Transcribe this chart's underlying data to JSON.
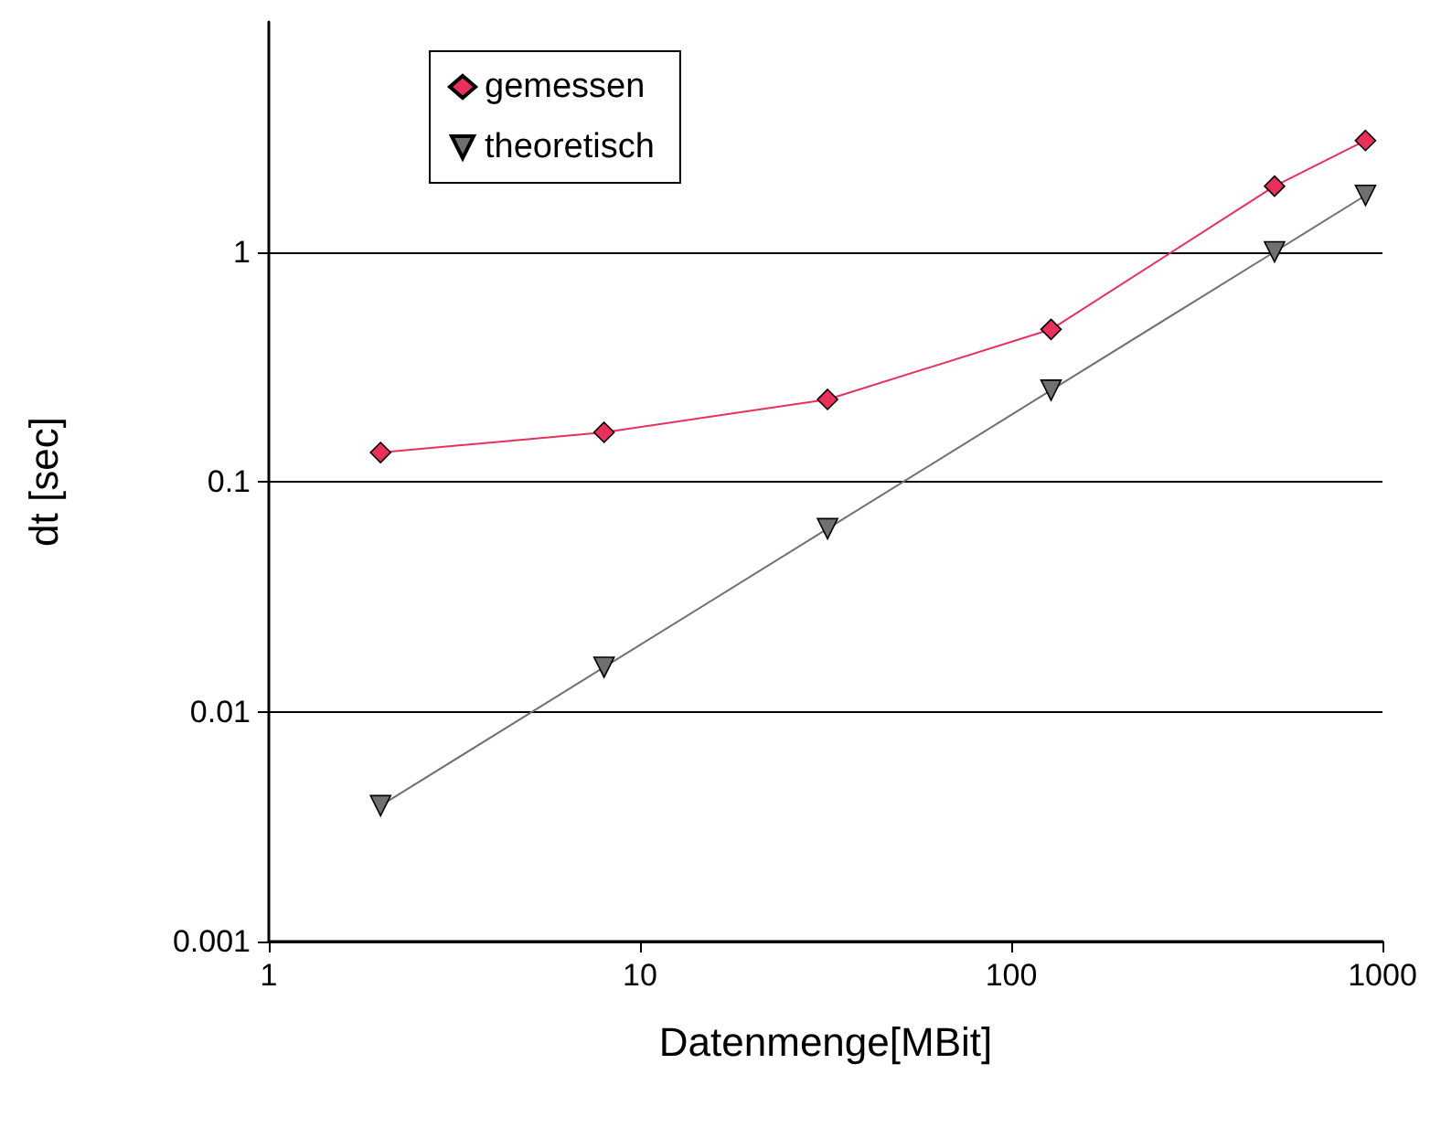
{
  "chart_data": {
    "type": "line",
    "xlabel": "Datenmenge[MBit]",
    "ylabel": "dt [sec]",
    "log": "xy",
    "xlim": [
      1,
      1000
    ],
    "xticks": [
      1,
      10,
      100,
      1000
    ],
    "ylim": [
      0.001,
      10
    ],
    "yticks": [
      0.001,
      0.01,
      0.1,
      1
    ],
    "grid": "y",
    "legend": "top left",
    "line_style": "solid",
    "series": [
      {
        "name": "gemessen",
        "color": "#e8305a",
        "marker": "diamond",
        "x": [
          2,
          8,
          32,
          128,
          512,
          900
        ],
        "values": [
          0.134,
          0.164,
          0.228,
          0.46,
          1.93,
          3.05
        ]
      },
      {
        "name": "theoretisch",
        "color": "#707070",
        "marker": "triangle",
        "x": [
          2,
          8,
          32,
          128,
          512,
          900
        ],
        "values": [
          0.0039,
          0.0156,
          0.0625,
          0.25,
          1,
          1.76
        ]
      }
    ]
  }
}
